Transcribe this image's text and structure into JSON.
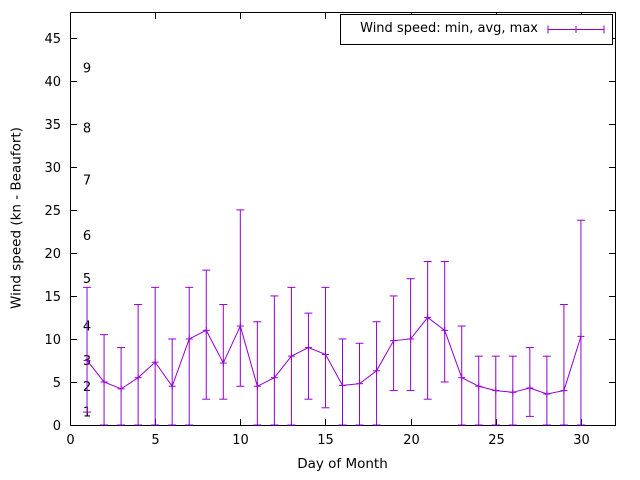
{
  "chart_data": {
    "type": "line",
    "subtype": "errorbars-min-avg-max",
    "title": "",
    "legend": "Wind speed: min, avg, max",
    "xlabel": "Day of Month",
    "ylabel": "Wind speed (kn - Beaufort)",
    "xlim": [
      0,
      32
    ],
    "ylim": [
      0,
      48
    ],
    "x_ticks": [
      0,
      5,
      10,
      15,
      20,
      25,
      30
    ],
    "y_ticks": [
      0,
      5,
      10,
      15,
      20,
      25,
      30,
      35,
      40,
      45
    ],
    "beaufort_scale": [
      {
        "label": "1",
        "kn": 1.5
      },
      {
        "label": "2",
        "kn": 4.5
      },
      {
        "label": "3",
        "kn": 7.5
      },
      {
        "label": "4",
        "kn": 11.5
      },
      {
        "label": "5",
        "kn": 17
      },
      {
        "label": "6",
        "kn": 22
      },
      {
        "label": "7",
        "kn": 28.5
      },
      {
        "label": "8",
        "kn": 34.5
      },
      {
        "label": "9",
        "kn": 41.5
      }
    ],
    "series_color": "#9400d3",
    "axis_color": "#000000",
    "grid": false,
    "legend_position": "top-right",
    "days": [
      1,
      2,
      3,
      4,
      5,
      6,
      7,
      8,
      9,
      10,
      11,
      12,
      13,
      14,
      15,
      16,
      17,
      18,
      19,
      20,
      21,
      22,
      23,
      24,
      25,
      26,
      27,
      28,
      29,
      30
    ],
    "avg": [
      7.5,
      5.0,
      4.2,
      5.5,
      7.3,
      4.5,
      10.0,
      11.0,
      7.2,
      11.5,
      4.5,
      5.5,
      8.0,
      9.0,
      8.2,
      4.6,
      4.8,
      6.3,
      9.8,
      10.0,
      12.5,
      11.0,
      5.5,
      4.5,
      4.0,
      3.8,
      4.3,
      3.6,
      4.0,
      10.3
    ],
    "min": [
      1.5,
      0,
      0,
      0,
      0,
      0,
      0,
      3,
      3,
      4.5,
      0,
      0,
      0,
      3,
      2,
      0,
      0,
      0,
      4,
      4,
      3,
      5,
      0,
      0,
      0,
      0,
      1,
      0,
      0,
      0
    ],
    "max": [
      16,
      10.5,
      9,
      14,
      16,
      10,
      16,
      18,
      14,
      25,
      12,
      15,
      16,
      13,
      16,
      10,
      9.5,
      12,
      15,
      17,
      19,
      19,
      11.5,
      8,
      8,
      8,
      9,
      8,
      14,
      23.8
    ]
  }
}
